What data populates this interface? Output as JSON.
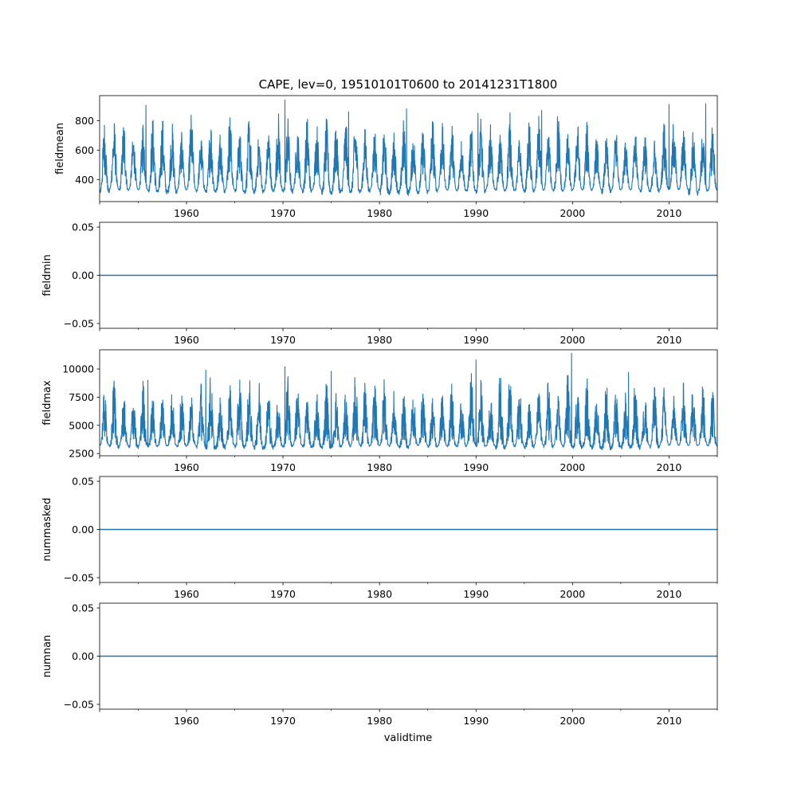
{
  "title": "CAPE, lev=0, 19510101T0600 to 20141231T1800",
  "xlabel": "validtime",
  "colors": {
    "line": "#1f77b4",
    "axes": "#000000",
    "background": "#ffffff"
  },
  "chart_data": [
    {
      "type": "line",
      "ylabel": "fieldmean",
      "xlim": [
        1951.0,
        2015.0
      ],
      "ylim": [
        250,
        970
      ],
      "yticks": [
        400,
        600,
        800
      ],
      "ytick_labels": [
        "400",
        "600",
        "800"
      ],
      "xticks": [
        1960,
        1970,
        1980,
        1990,
        2000,
        2010
      ],
      "xtick_labels": [
        "1960",
        "1970",
        "1980",
        "1990",
        "2000",
        "2010"
      ],
      "grid": false,
      "series": [
        {
          "pattern": "seasonal-oscillation",
          "x_range": [
            1951.0,
            2015.0
          ],
          "baseline": 520,
          "typical_range": [
            330,
            730
          ],
          "yearly_low_range": [
            290,
            340
          ],
          "yearly_high_range": [
            680,
            880
          ],
          "peaks": [
            {
              "x": 1955.8,
              "y": 905
            },
            {
              "x": 1970.2,
              "y": 940
            },
            {
              "x": 1976.8,
              "y": 860
            },
            {
              "x": 1982.8,
              "y": 880
            },
            {
              "x": 1990.2,
              "y": 850
            },
            {
              "x": 1996.8,
              "y": 870
            },
            {
              "x": 2010.0,
              "y": 910
            },
            {
              "x": 2013.8,
              "y": 915
            }
          ]
        }
      ]
    },
    {
      "type": "line",
      "ylabel": "fieldmin",
      "xlim": [
        1951.0,
        2015.0
      ],
      "ylim": [
        -0.055,
        0.055
      ],
      "yticks": [
        -0.05,
        0.0,
        0.05
      ],
      "ytick_labels": [
        "−0.05",
        "0.00",
        "0.05"
      ],
      "xticks": [
        1960,
        1970,
        1980,
        1990,
        2000,
        2010
      ],
      "xtick_labels": [
        "1960",
        "1970",
        "1980",
        "1990",
        "2000",
        "2010"
      ],
      "grid": false,
      "series": [
        {
          "x": [
            1951.0,
            2015.0
          ],
          "y": [
            0,
            0
          ]
        }
      ]
    },
    {
      "type": "line",
      "ylabel": "fieldmax",
      "xlim": [
        1951.0,
        2015.0
      ],
      "ylim": [
        2300,
        11700
      ],
      "yticks": [
        2500,
        5000,
        7500,
        10000
      ],
      "ytick_labels": [
        "2500",
        "5000",
        "7500",
        "10000"
      ],
      "xticks": [
        1960,
        1970,
        1980,
        1990,
        2000,
        2010
      ],
      "xtick_labels": [
        "1960",
        "1970",
        "1980",
        "1990",
        "2000",
        "2010"
      ],
      "grid": false,
      "series": [
        {
          "pattern": "seasonal-oscillation",
          "x_range": [
            1951.0,
            2015.0
          ],
          "baseline": 4200,
          "typical_range": [
            3200,
            6500
          ],
          "yearly_low_range": [
            2800,
            3300
          ],
          "yearly_high_range": [
            7500,
            9800
          ],
          "peaks": [
            {
              "x": 1956.0,
              "y": 9000
            },
            {
              "x": 1962.0,
              "y": 9900
            },
            {
              "x": 1970.2,
              "y": 10200
            },
            {
              "x": 1975.0,
              "y": 9800
            },
            {
              "x": 1990.0,
              "y": 10800
            },
            {
              "x": 1999.9,
              "y": 11400
            },
            {
              "x": 2005.8,
              "y": 9700
            }
          ]
        }
      ]
    },
    {
      "type": "line",
      "ylabel": "nummasked",
      "xlim": [
        1951.0,
        2015.0
      ],
      "ylim": [
        -0.055,
        0.055
      ],
      "yticks": [
        -0.05,
        0.0,
        0.05
      ],
      "ytick_labels": [
        "−0.05",
        "0.00",
        "0.05"
      ],
      "xticks": [
        1960,
        1970,
        1980,
        1990,
        2000,
        2010
      ],
      "xtick_labels": [
        "1960",
        "1970",
        "1980",
        "1990",
        "2000",
        "2010"
      ],
      "grid": false,
      "series": [
        {
          "x": [
            1951.0,
            2015.0
          ],
          "y": [
            0,
            0
          ]
        }
      ]
    },
    {
      "type": "line",
      "ylabel": "numnan",
      "xlim": [
        1951.0,
        2015.0
      ],
      "ylim": [
        -0.055,
        0.055
      ],
      "yticks": [
        -0.05,
        0.0,
        0.05
      ],
      "ytick_labels": [
        "−0.05",
        "0.00",
        "0.05"
      ],
      "xticks": [
        1960,
        1970,
        1980,
        1990,
        2000,
        2010
      ],
      "xtick_labels": [
        "1960",
        "1970",
        "1980",
        "1990",
        "2000",
        "2010"
      ],
      "grid": false,
      "series": [
        {
          "x": [
            1951.0,
            2015.0
          ],
          "y": [
            0,
            0
          ]
        }
      ]
    }
  ]
}
